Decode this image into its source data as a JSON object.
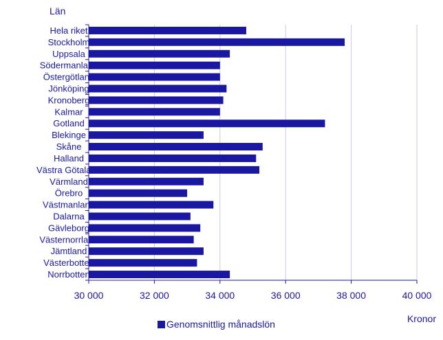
{
  "chart_data": {
    "type": "bar",
    "orientation": "horizontal",
    "y_axis_title": "Län",
    "x_axis_title": "Kronor",
    "categories": [
      "Hela riket",
      "Stockholm",
      "Uppsala",
      "Södermanland",
      "Östergötland",
      "Jönköping",
      "Kronoberg",
      "Kalmar",
      "Gotland",
      "Blekinge",
      "Skåne",
      "Halland",
      "Västra Götaland",
      "Värmland",
      "Örebro",
      "Västmanland",
      "Dalarna",
      "Gävleborg",
      "Västernorrland",
      "Jämtland",
      "Västerbotten",
      "Norrbotten"
    ],
    "series": [
      {
        "name": "Genomsnittlig månadslön",
        "values": [
          34800,
          37800,
          34300,
          34000,
          34000,
          34200,
          34100,
          34000,
          37200,
          33500,
          35300,
          35100,
          35200,
          33500,
          33000,
          33800,
          33100,
          33400,
          33200,
          33500,
          33300,
          34300
        ]
      }
    ],
    "xlim": [
      30000,
      40000
    ],
    "x_ticks": [
      30000,
      32000,
      34000,
      36000,
      38000,
      40000
    ],
    "x_tick_labels": [
      "30 000",
      "32 000",
      "34 000",
      "36 000",
      "38 000",
      "40 000"
    ],
    "grid": "vertical",
    "legend_position": "bottom-center",
    "colors": {
      "bar": "#1a17a0",
      "text": "#1a17a0",
      "grid": "#c9c9e8",
      "axis": "#1a17a0"
    }
  }
}
